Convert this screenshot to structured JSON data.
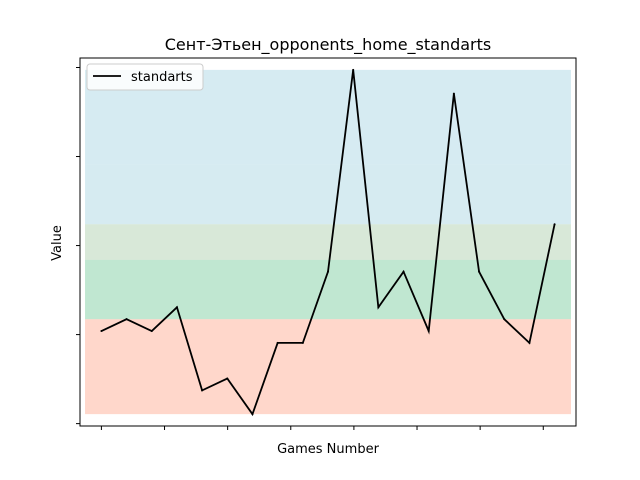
{
  "chart_data": {
    "type": "line",
    "title": "Сент-Этьен_opponents_home_standarts",
    "xlabel": "Games Number",
    "ylabel": "Value",
    "legend": {
      "placement": "top-left",
      "entries": [
        "standarts"
      ]
    },
    "grid": false,
    "x_tick_count": 8,
    "y_tick_count": 5,
    "series": [
      {
        "name": "standarts",
        "color": "#000000",
        "x": [
          0,
          1,
          2,
          3,
          4,
          5,
          6,
          7,
          8,
          9,
          10,
          11,
          12,
          13,
          14,
          15,
          16,
          17,
          18
        ],
        "values": [
          3,
          4,
          3,
          5,
          -2,
          -1,
          -4,
          2,
          2,
          8,
          25,
          5,
          8,
          3,
          23,
          8,
          4,
          2,
          12
        ]
      }
    ],
    "bands": [
      {
        "from": -4,
        "to": 4,
        "color": "#ff8c69",
        "opacity": 0.35
      },
      {
        "from": 4,
        "to": 9,
        "color": "#3cb371",
        "opacity": 0.32
      },
      {
        "from": 9,
        "to": 12,
        "color": "#8fbc8f",
        "opacity": 0.35
      },
      {
        "from": 12,
        "to": 17,
        "color": "#a3d3e0",
        "opacity": 0.45
      },
      {
        "from": 17,
        "to": 25,
        "color": "#add8e6",
        "opacity": 0.5
      }
    ],
    "xlim": [
      -0.85,
      18.85
    ],
    "ylim": [
      -5,
      26
    ]
  }
}
